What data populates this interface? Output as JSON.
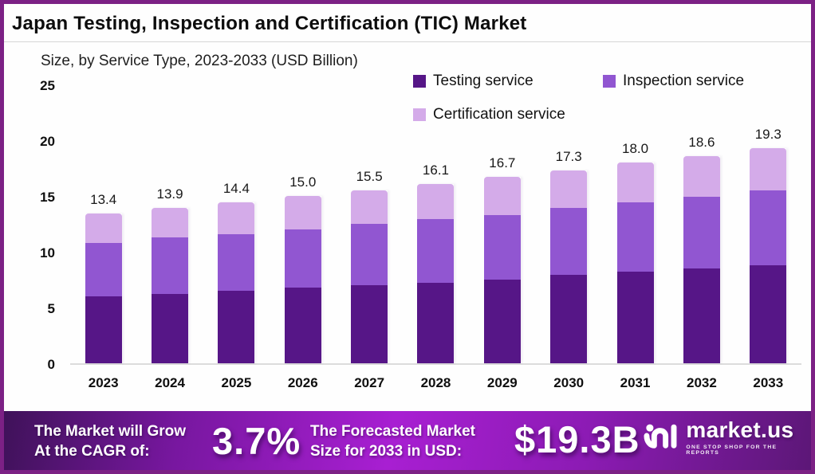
{
  "header": {
    "title": "Japan Testing, Inspection and Certification (TIC) Market",
    "subtitle": "Size, by Service Type, 2023-2033 (USD Billion)"
  },
  "legend": [
    {
      "label": "Testing service",
      "color": "#561687"
    },
    {
      "label": "Inspection service",
      "color": "#9156d1"
    },
    {
      "label": "Certification service",
      "color": "#d4abe9"
    }
  ],
  "chart_data": {
    "type": "bar",
    "stacked": true,
    "title": "Japan Testing, Inspection and Certification (TIC) Market",
    "subtitle": "Size, by Service Type, 2023-2033 (USD Billion)",
    "xlabel": "",
    "ylabel": "",
    "ylim": [
      0,
      25
    ],
    "yticks": [
      0,
      5,
      10,
      15,
      20,
      25
    ],
    "grid": false,
    "legend_position": "top-right",
    "categories": [
      "2023",
      "2024",
      "2025",
      "2026",
      "2027",
      "2028",
      "2029",
      "2030",
      "2031",
      "2032",
      "2033"
    ],
    "series": [
      {
        "name": "Testing service",
        "color": "#561687",
        "values": [
          6.0,
          6.2,
          6.5,
          6.8,
          7.0,
          7.2,
          7.5,
          7.9,
          8.2,
          8.5,
          8.8
        ]
      },
      {
        "name": "Inspection service",
        "color": "#9156d1",
        "values": [
          4.8,
          5.1,
          5.1,
          5.2,
          5.5,
          5.7,
          5.8,
          6.0,
          6.2,
          6.4,
          6.7
        ]
      },
      {
        "name": "Certification service",
        "color": "#d4abe9",
        "values": [
          2.6,
          2.6,
          2.8,
          3.0,
          3.0,
          3.2,
          3.4,
          3.4,
          3.6,
          3.7,
          3.8
        ]
      }
    ],
    "totals": [
      13.4,
      13.9,
      14.4,
      15.0,
      15.5,
      16.1,
      16.7,
      17.3,
      18.0,
      18.6,
      19.3
    ],
    "total_labels": [
      "13.4",
      "13.9",
      "14.4",
      "15.0",
      "15.5",
      "16.1",
      "16.7",
      "17.3",
      "18.0",
      "18.6",
      "19.3"
    ]
  },
  "footer": {
    "cagr_label_line1": "The Market will Grow",
    "cagr_label_line2": "At the CAGR of:",
    "cagr_value": "3.7%",
    "forecast_label_line1": "The Forecasted Market",
    "forecast_label_line2": "Size for 2033 in USD:",
    "forecast_value": "$19.3B",
    "brand": {
      "name": "market.us",
      "tagline": "ONE STOP SHOP FOR THE REPORTS"
    }
  }
}
